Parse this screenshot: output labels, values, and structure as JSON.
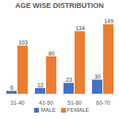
{
  "chart_data": {
    "type": "bar",
    "title": "AGE WISE DISTRIBUTION",
    "categories": [
      "31-40",
      "41-50",
      "51-60",
      "60-70"
    ],
    "series": [
      {
        "name": "MALE",
        "color": "#4472c4",
        "values": [
          6,
          12,
          23,
          30
        ]
      },
      {
        "name": "FEMALE",
        "color": "#ed7d31",
        "values": [
          103,
          80,
          134,
          149
        ]
      }
    ],
    "ylim": [
      0,
      160
    ],
    "data_labels": true,
    "tick_labels": "x",
    "legend": "bottom"
  }
}
